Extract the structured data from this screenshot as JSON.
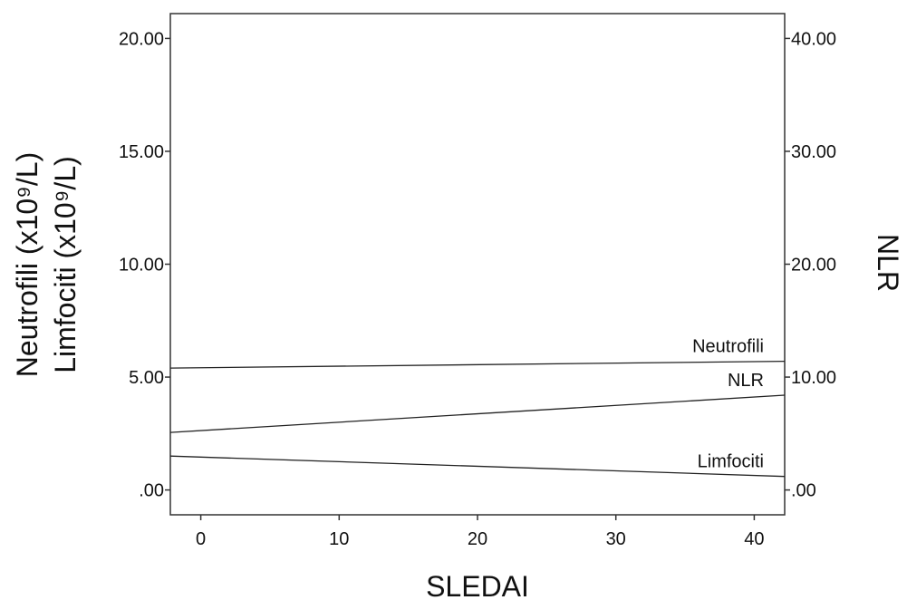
{
  "chart_data": {
    "type": "line",
    "xlabel": "SLEDAI",
    "ylabel_left_lines": [
      "Neutrofili (x10⁹/L)",
      "Limfociti (x10⁹/L)"
    ],
    "ylabel_right": "NLR",
    "xlim": [
      -2.2,
      42.2
    ],
    "ylim_left": [
      -1.1,
      21.1
    ],
    "ylim_right": [
      -2.2,
      42.2
    ],
    "x_ticks": [
      {
        "value": 0,
        "label": "0"
      },
      {
        "value": 10,
        "label": "10"
      },
      {
        "value": 20,
        "label": "20"
      },
      {
        "value": 30,
        "label": "30"
      },
      {
        "value": 40,
        "label": "40"
      }
    ],
    "y_left_ticks": [
      {
        "value": 0,
        "label": ".00"
      },
      {
        "value": 5,
        "label": "5.00"
      },
      {
        "value": 10,
        "label": "10.00"
      },
      {
        "value": 15,
        "label": "15.00"
      },
      {
        "value": 20,
        "label": "20.00"
      }
    ],
    "y_right_ticks": [
      {
        "value": 0,
        "label": ".00"
      },
      {
        "value": 10,
        "label": "10.00"
      },
      {
        "value": 20,
        "label": "20.00"
      },
      {
        "value": 30,
        "label": "30.00"
      },
      {
        "value": 40,
        "label": "40.00"
      }
    ],
    "series": [
      {
        "name": "Neutrofili",
        "axis": "left",
        "x": [
          -2.2,
          42.2
        ],
        "y": [
          5.4,
          5.7
        ]
      },
      {
        "name": "NLR",
        "axis": "right",
        "x": [
          -2.2,
          42.2
        ],
        "y": [
          5.1,
          8.4
        ]
      },
      {
        "name": "Limfociti",
        "axis": "left",
        "x": [
          -2.2,
          42.2
        ],
        "y": [
          1.5,
          0.6
        ]
      }
    ],
    "grid": false,
    "legend": "none",
    "line_color": "#222222"
  }
}
